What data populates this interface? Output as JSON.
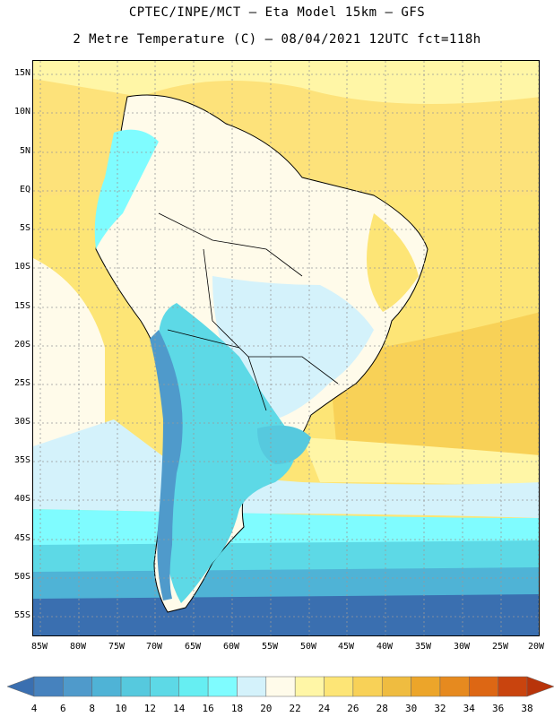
{
  "title": {
    "line1": "CPTEC/INPE/MCT –  Eta Model 15km – GFS",
    "line2": "2 Metre Temperature (C) – 08/04/2021 12UTC fct=118h"
  },
  "axes": {
    "lat_labels": [
      "15N",
      "10N",
      "5N",
      "EQ",
      "5S",
      "10S",
      "15S",
      "20S",
      "25S",
      "30S",
      "35S",
      "40S",
      "45S",
      "50S",
      "55S"
    ],
    "lon_labels": [
      "85W",
      "80W",
      "75W",
      "70W",
      "65W",
      "60W",
      "55W",
      "50W",
      "45W",
      "40W",
      "35W",
      "30W",
      "25W",
      "20W"
    ]
  },
  "colorbar": {
    "values": [
      "4",
      "6",
      "8",
      "10",
      "12",
      "14",
      "16",
      "18",
      "20",
      "22",
      "24",
      "26",
      "28",
      "30",
      "32",
      "34",
      "36",
      "38"
    ],
    "colors": [
      "#3a6fb0",
      "#4682be",
      "#4f9acb",
      "#4fb3d6",
      "#56c9de",
      "#5dd9e6",
      "#66eef2",
      "#7ffcff",
      "#d4f2fb",
      "#fffbea",
      "#fff6a6",
      "#fde576",
      "#f8d157",
      "#efbc40",
      "#eca52a",
      "#e68a1f",
      "#dd6714",
      "#c9440e",
      "#b8340a"
    ]
  }
}
